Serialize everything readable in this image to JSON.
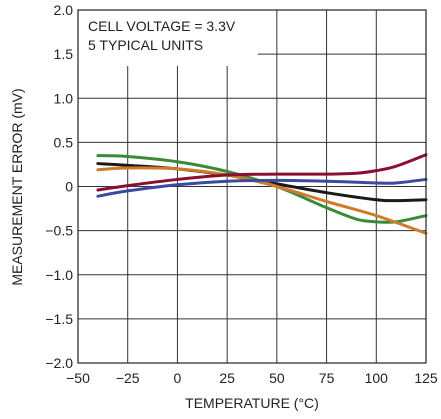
{
  "chart_data": {
    "type": "line",
    "title": "",
    "xlabel": "TEMPERATURE (°C)",
    "ylabel": "MEASUREMENT ERROR (mV)",
    "xlim": [
      -50,
      125
    ],
    "ylim": [
      -2.0,
      2.0
    ],
    "x_tick_labels": [
      "−50",
      "−25",
      "0",
      "25",
      "50",
      "75",
      "100",
      "125"
    ],
    "y_tick_labels": [
      "2.0",
      "1.5",
      "1.0",
      "0.5",
      "0",
      "−0.5",
      "−1.0",
      "−1.5",
      "−2.0"
    ],
    "grid": true,
    "annotation_lines": [
      "CELL VOLTAGE = 3.3V",
      "5 TYPICAL UNITS"
    ],
    "series": [
      {
        "color": "#1a1a1a",
        "points": [
          [
            -40,
            0.26
          ],
          [
            -25,
            0.24
          ],
          [
            0,
            0.2
          ],
          [
            25,
            0.13
          ],
          [
            50,
            0.03
          ],
          [
            75,
            -0.07
          ],
          [
            100,
            -0.15
          ],
          [
            110,
            -0.16
          ],
          [
            125,
            -0.15
          ]
        ]
      },
      {
        "color": "#3a8a3a",
        "points": [
          [
            -40,
            0.35
          ],
          [
            -25,
            0.34
          ],
          [
            0,
            0.28
          ],
          [
            25,
            0.17
          ],
          [
            50,
            0.0
          ],
          [
            75,
            -0.24
          ],
          [
            90,
            -0.37
          ],
          [
            100,
            -0.4
          ],
          [
            110,
            -0.4
          ],
          [
            125,
            -0.33
          ]
        ]
      },
      {
        "color": "#d07a2a",
        "points": [
          [
            -40,
            0.19
          ],
          [
            -25,
            0.21
          ],
          [
            0,
            0.2
          ],
          [
            25,
            0.13
          ],
          [
            50,
            0.0
          ],
          [
            75,
            -0.17
          ],
          [
            100,
            -0.33
          ],
          [
            125,
            -0.53
          ]
        ]
      },
      {
        "color": "#8b1030",
        "points": [
          [
            -40,
            -0.04
          ],
          [
            -25,
            0.01
          ],
          [
            0,
            0.08
          ],
          [
            25,
            0.13
          ],
          [
            50,
            0.14
          ],
          [
            75,
            0.14
          ],
          [
            90,
            0.15
          ],
          [
            100,
            0.18
          ],
          [
            110,
            0.23
          ],
          [
            125,
            0.36
          ]
        ]
      },
      {
        "color": "#3a4aa0",
        "points": [
          [
            -40,
            -0.11
          ],
          [
            -25,
            -0.05
          ],
          [
            0,
            0.02
          ],
          [
            25,
            0.06
          ],
          [
            50,
            0.07
          ],
          [
            75,
            0.06
          ],
          [
            100,
            0.04
          ],
          [
            110,
            0.04
          ],
          [
            125,
            0.08
          ]
        ]
      }
    ]
  }
}
